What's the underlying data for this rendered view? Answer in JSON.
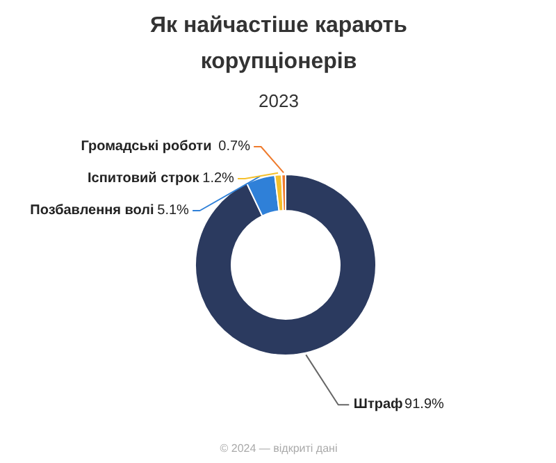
{
  "chart_data": {
    "type": "donut",
    "title": "Як найчастіше карають корупціонерів",
    "subtitle": "2023",
    "categories": [
      "Штраф",
      "Позбавлення волі",
      "Іспитовий строк",
      "Громадські роботи"
    ],
    "values": [
      91.9,
      5.1,
      1.2,
      0.7
    ],
    "colors": [
      "#2b3a5f",
      "#2f80d8",
      "#f5c02c",
      "#ef7b2d"
    ],
    "value_labels": [
      "91.9%",
      "5.1%",
      "1.2%",
      "0.7%"
    ],
    "annotations": [
      "© 2024 — відкриті дані"
    ]
  }
}
